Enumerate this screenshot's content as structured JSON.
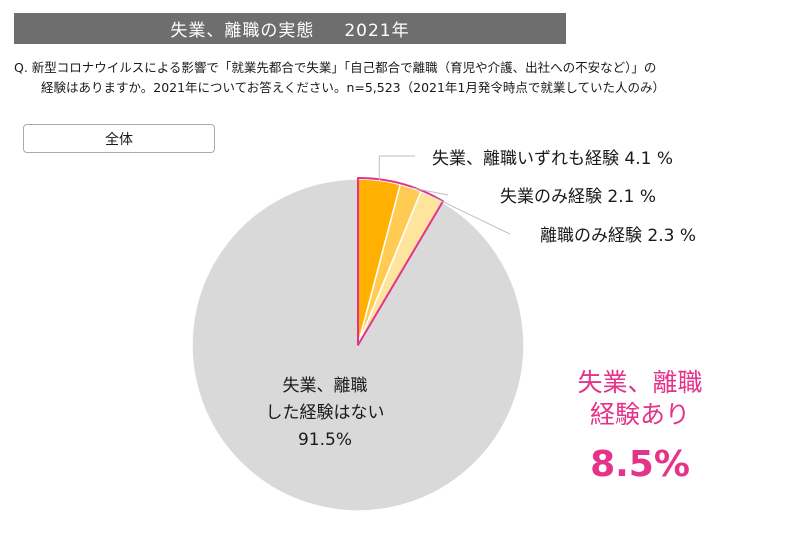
{
  "header": {
    "title": "失業、離職の実態",
    "year": "2021年"
  },
  "question": {
    "line1": "Q.  新型コロナウイルスによる影響で「就業先都合で失業」「自己都合で離職（育児や介護、出社への不安など）」の",
    "line2": "経験はありますか。2021年についてお答えください。n=5,523（2021年1月発令時点で就業していた人のみ）"
  },
  "group_label": "全体",
  "chart_data": {
    "type": "pie",
    "categories": [
      "失業、離職いずれも経験",
      "失業のみ経験",
      "離職のみ経験",
      "失業、離職した経験はない"
    ],
    "values": [
      4.1,
      2.1,
      2.3,
      91.5
    ],
    "colors": [
      "#FFB000",
      "#FFCB52",
      "#FFE49E",
      "#D9D9D9"
    ],
    "highlight_color": "#E6338A",
    "label_texts": [
      "失業、離職いずれも経験  4.1 %",
      "失業のみ経験  2.1 %",
      "離職のみ経験  2.3 %"
    ],
    "none_label": [
      "失業、離職",
      "した経験はない",
      "91.5%"
    ]
  },
  "summary": {
    "line1": "失業、離職",
    "line2": "経験あり",
    "value": "8.5%"
  }
}
